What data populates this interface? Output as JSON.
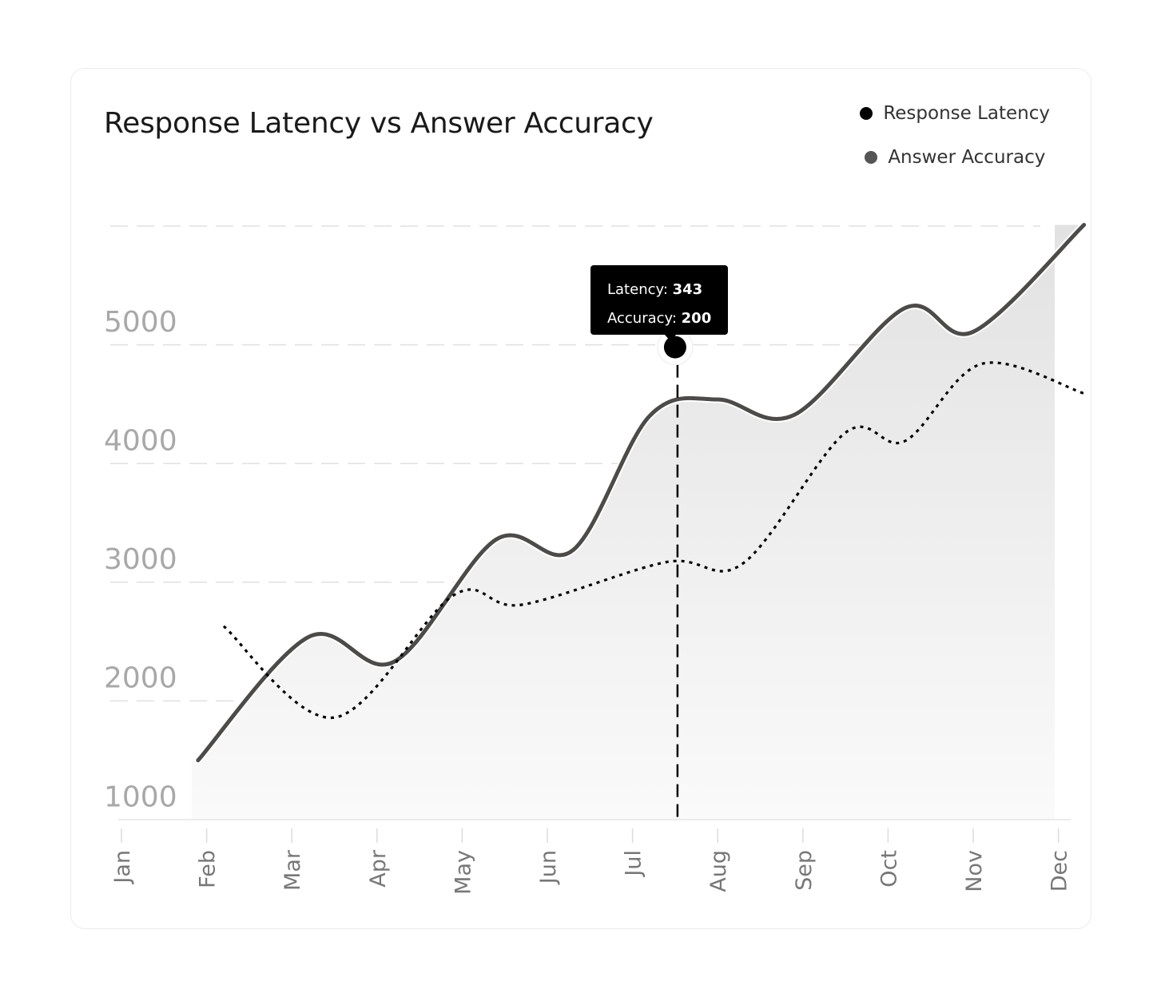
{
  "colors": {
    "latency_line": "#4d4b49",
    "accuracy_line": "#000000",
    "legend_latency_dot": "#000000",
    "legend_accuracy_dot": "#555555",
    "grid": "#e0e0e0",
    "area_top": "#e2e2e2",
    "tooltip_bg": "#000000"
  },
  "tooltip": {
    "latency_label": "Latency: ",
    "latency_value": "343",
    "accuracy_label": "Accuracy: ",
    "accuracy_value": "200"
  },
  "chart_data": {
    "type": "line",
    "title": "Response Latency vs Answer Accuracy",
    "xlabel": "",
    "ylabel": "",
    "legend_position": "top-right",
    "grid": true,
    "categories": [
      "Jan",
      "Feb",
      "Mar",
      "Apr",
      "May",
      "Jun",
      "Jul",
      "Aug",
      "Sep",
      "Oct",
      "Nov",
      "Dec"
    ],
    "y_ticks": [
      1000,
      2000,
      3000,
      4000,
      5000
    ],
    "ylim": [
      800,
      5800
    ],
    "series": [
      {
        "name": "Response Latency",
        "style": "solid",
        "area_fill": true,
        "points": [
          {
            "x": 1.9,
            "y": 1300
          },
          {
            "x": 3.2,
            "y": 2340
          },
          {
            "x": 4.2,
            "y": 2130
          },
          {
            "x": 5.4,
            "y": 3160
          },
          {
            "x": 6.3,
            "y": 3070
          },
          {
            "x": 7.2,
            "y": 4200
          },
          {
            "x": 8.0,
            "y": 4340
          },
          {
            "x": 8.9,
            "y": 4210
          },
          {
            "x": 10.2,
            "y": 5110
          },
          {
            "x": 11.0,
            "y": 4910
          },
          {
            "x": 12.3,
            "y": 5810
          }
        ]
      },
      {
        "name": "Answer Accuracy",
        "style": "dotted",
        "area_fill": false,
        "points": [
          {
            "x": 2.2,
            "y": 2430
          },
          {
            "x": 3.5,
            "y": 1660
          },
          {
            "x": 4.9,
            "y": 2690
          },
          {
            "x": 5.7,
            "y": 2610
          },
          {
            "x": 7.4,
            "y": 2970
          },
          {
            "x": 8.3,
            "y": 2960
          },
          {
            "x": 9.5,
            "y": 4060
          },
          {
            "x": 10.2,
            "y": 3990
          },
          {
            "x": 11.1,
            "y": 4640
          },
          {
            "x": 12.3,
            "y": 4390
          }
        ]
      }
    ],
    "highlight": {
      "x": 7.5,
      "y": 4780,
      "latency": 343,
      "accuracy": 200
    }
  }
}
